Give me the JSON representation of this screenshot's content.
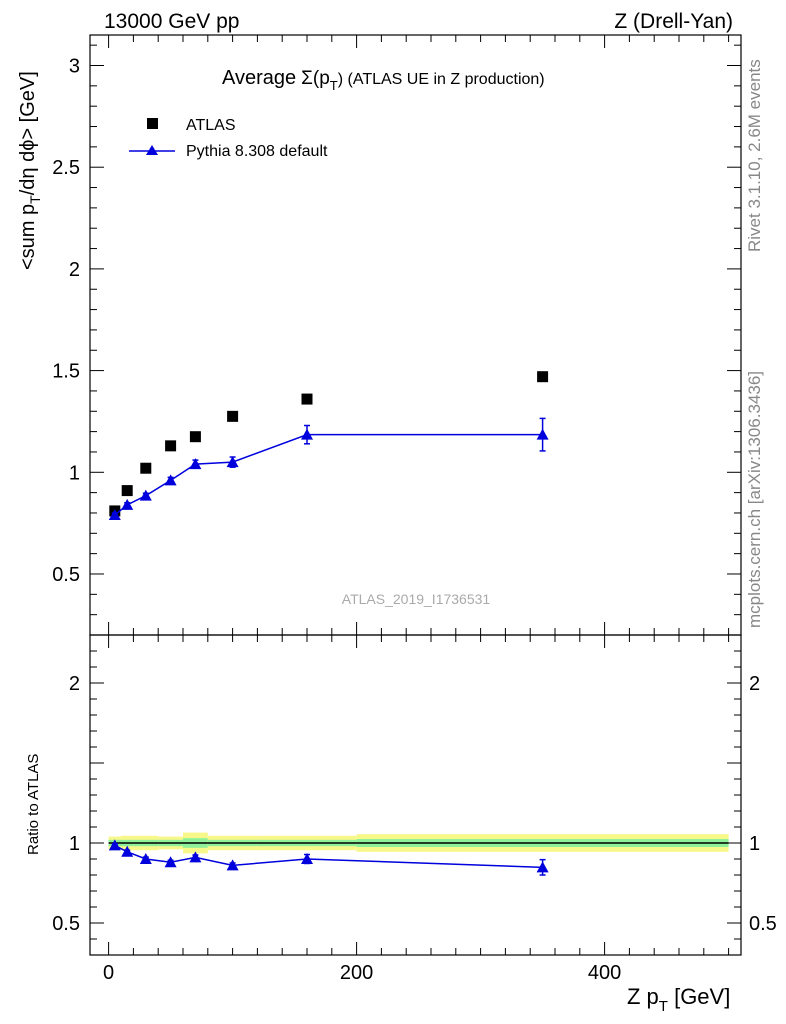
{
  "header": {
    "left": "13000 GeV pp",
    "right": "Z (Drell-Yan)"
  },
  "side": {
    "rivet": "Rivet 3.1.10,  2.6M events",
    "source": "mcplots.cern.ch [arXiv:1306.3436]"
  },
  "chart_data": [
    {
      "type": "scatter",
      "title_main": "Average",
      "title_sigma": "Σ(p",
      "title_sub": "T",
      "title_tail": ") (ATLAS UE in Z production)",
      "ylabel": "<sum p",
      "ylabel_sub": "T",
      "ylabel_tail": "/dη dϕ> [GeV]",
      "watermark": "ATLAS_2019_I1736531",
      "xlim": [
        -15,
        510
      ],
      "ylim": [
        0.2,
        3.15
      ],
      "yticks": [
        0.5,
        1,
        1.5,
        2,
        2.5,
        3
      ],
      "ytick_labels": [
        "0.5",
        "1",
        "1.5",
        "2",
        "2.5",
        "3"
      ],
      "legend_position": "top-left",
      "series": [
        {
          "name": "ATLAS",
          "marker": "square",
          "color": "#000000",
          "x": [
            5,
            15,
            30,
            50,
            70,
            100,
            160,
            350
          ],
          "y": [
            0.81,
            0.91,
            1.02,
            1.13,
            1.175,
            1.275,
            1.36,
            1.47
          ]
        },
        {
          "name": "Pythia 8.308 default",
          "marker": "triangle",
          "color": "#0000dd",
          "x": [
            5,
            15,
            30,
            50,
            70,
            100,
            160,
            350
          ],
          "y": [
            0.79,
            0.84,
            0.885,
            0.96,
            1.04,
            1.05,
            1.185,
            1.185
          ],
          "yerr": [
            0.01,
            0.01,
            0.012,
            0.015,
            0.02,
            0.025,
            0.045,
            0.08
          ]
        }
      ]
    },
    {
      "type": "scatter",
      "ylabel": "Ratio to ATLAS",
      "xlabel": "Z p",
      "xlabel_sub": "T",
      "xlabel_tail": " [GeV]",
      "xlim": [
        -15,
        510
      ],
      "ylim": [
        0.3,
        2.3
      ],
      "xticks": [
        0,
        200,
        400
      ],
      "xtick_labels": [
        "0",
        "200",
        "400"
      ],
      "yticks": [
        0.5,
        1,
        2
      ],
      "ytick_labels": [
        "0.5",
        "1",
        "2"
      ],
      "band_bins": [
        {
          "x0": 0,
          "x1": 10,
          "inner": 0.02,
          "outer": 0.04
        },
        {
          "x0": 10,
          "x1": 20,
          "inner": 0.02,
          "outer": 0.045
        },
        {
          "x0": 20,
          "x1": 40,
          "inner": 0.02,
          "outer": 0.045
        },
        {
          "x0": 40,
          "x1": 60,
          "inner": 0.02,
          "outer": 0.04
        },
        {
          "x0": 60,
          "x1": 80,
          "inner": 0.03,
          "outer": 0.065
        },
        {
          "x0": 80,
          "x1": 120,
          "inner": 0.02,
          "outer": 0.045
        },
        {
          "x0": 120,
          "x1": 200,
          "inner": 0.02,
          "outer": 0.045
        },
        {
          "x0": 200,
          "x1": 500,
          "inner": 0.025,
          "outer": 0.055
        }
      ],
      "series": [
        {
          "name": "Pythia 8.308 default",
          "marker": "triangle",
          "color": "#0000dd",
          "x": [
            5,
            15,
            30,
            50,
            70,
            100,
            160,
            350
          ],
          "y": [
            0.985,
            0.945,
            0.9,
            0.88,
            0.91,
            0.86,
            0.9,
            0.848
          ],
          "yerr": [
            0.01,
            0.01,
            0.012,
            0.012,
            0.015,
            0.015,
            0.028,
            0.048
          ]
        }
      ]
    }
  ]
}
